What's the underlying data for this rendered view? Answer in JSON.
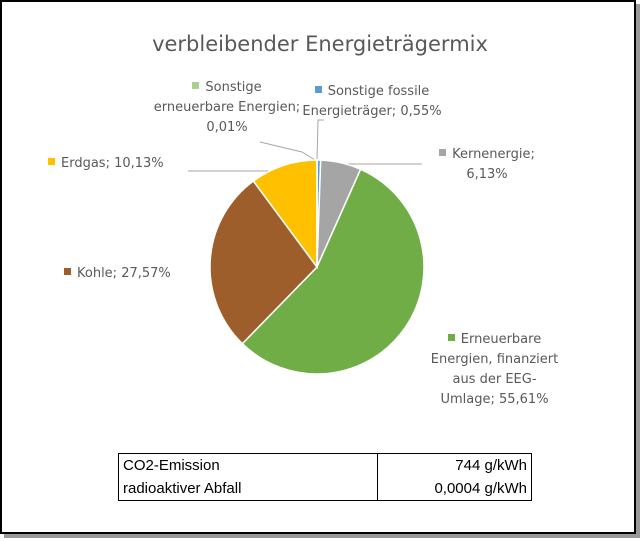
{
  "chart_data": {
    "type": "pie",
    "title": "verbleibender Energieträgermix",
    "value_labels": [
      "Sonstige fossile Energieträger; 0,55%",
      "Kernenergie; 6,13%",
      "Erneuerbare Energien, finanziert aus der EEG-Umlage; 55,61%",
      "Kohle; 27,57%",
      "Erdgas; 10,13%",
      "Sonstige erneuerbare Energien; 0,01%"
    ],
    "values": [
      0.55,
      6.13,
      55.61,
      27.57,
      10.13,
      0.01
    ],
    "colors": [
      "#5b9bd5",
      "#a5a5a5",
      "#70ad47",
      "#9e5e2b",
      "#ffc000",
      "#a9d18e"
    ]
  },
  "table": {
    "rows": [
      [
        "CO2-Emission",
        "744 g/kWh"
      ],
      [
        "radioaktiver Abfall",
        "0,0004 g/kWh"
      ]
    ]
  }
}
